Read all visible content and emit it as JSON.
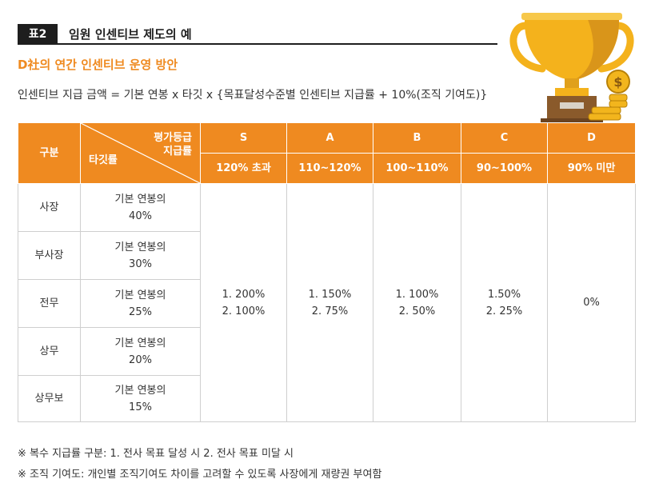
{
  "header": {
    "badge": "표2",
    "title": "임원 인센티브 제도의 예"
  },
  "subtitle": "D社의 연간 인센티브 운영 방안",
  "formula": "인센티브 지급 금액 = 기본 연봉 x 타깃 x {목표달성수준별 인센티브 지급률 + 10%(조직 기여도)}",
  "table": {
    "col_header": "구분",
    "diag_top_1": "평가등급",
    "diag_top_2": "지급률",
    "diag_bottom": "타깃률",
    "grades": [
      {
        "grade": "S",
        "range": "120% 초과"
      },
      {
        "grade": "A",
        "range": "110~120%"
      },
      {
        "grade": "B",
        "range": "100~110%"
      },
      {
        "grade": "C",
        "range": "90~100%"
      },
      {
        "grade": "D",
        "range": "90% 미만"
      }
    ],
    "rows": [
      {
        "role": "사장",
        "target_1": "기본 연봉의",
        "target_2": "40%"
      },
      {
        "role": "부사장",
        "target_1": "기본 연봉의",
        "target_2": "30%"
      },
      {
        "role": "전무",
        "target_1": "기본 연봉의",
        "target_2": "25%"
      },
      {
        "role": "상무",
        "target_1": "기본 연봉의",
        "target_2": "20%"
      },
      {
        "role": "상무보",
        "target_1": "기본 연봉의",
        "target_2": "15%"
      }
    ],
    "rates": [
      {
        "line1": "1. 200%",
        "line2": "2. 100%"
      },
      {
        "line1": "1. 150%",
        "line2": "2. 75%"
      },
      {
        "line1": "1. 100%",
        "line2": "2. 50%"
      },
      {
        "line1": "1.50%",
        "line2": "2. 25%"
      },
      {
        "line1": "0%",
        "line2": ""
      }
    ]
  },
  "notes": [
    "※ 복수 지급률 구분: 1. 전사 목표 달성 시 2. 전사 목표 미달 시",
    "※ 조직 기여도:  개인별 조직기여도 차이를 고려할 수 있도록 사장에게 재량권 부여함"
  ],
  "trophy": {
    "coin_symbol": "$",
    "colors": {
      "cup": "#f4b21c",
      "cup_shade": "#d9951a",
      "base": "#8a5a2b",
      "coin": "#f2b51d"
    }
  },
  "accent_color": "#ef8a20"
}
